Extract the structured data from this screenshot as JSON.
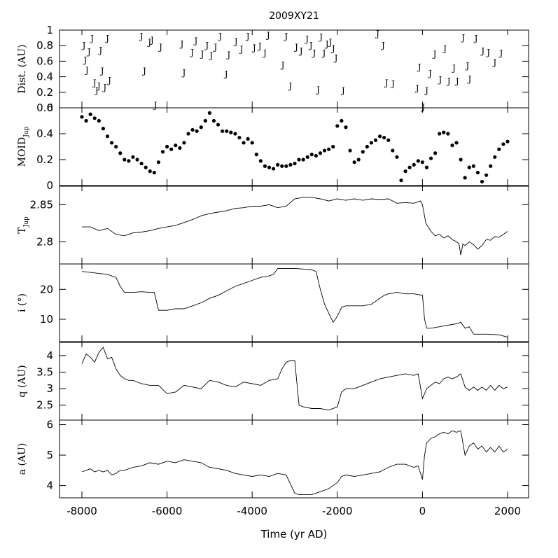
{
  "chart_data": {
    "type": "line",
    "title": "2009XY21",
    "xlabel": "Time (yr AD)",
    "xlim": [
      -8000,
      2000
    ],
    "xticks": [
      -8000,
      -6000,
      -4000,
      -2000,
      0,
      2000
    ],
    "panels": [
      {
        "id": "dist",
        "ylabel": "Dist. (AU)",
        "ylabel_sub": "",
        "ylim": [
          0,
          1
        ],
        "yticks": [
          0,
          0.2,
          0.4,
          0.6,
          0.8,
          1
        ],
        "ytick_labels": [
          "0",
          "0.2",
          "0.4",
          "0.6",
          "0.8",
          "1"
        ],
        "style": "markers",
        "marker": "J",
        "x": [
          -7950,
          -7920,
          -7880,
          -7830,
          -7760,
          -7700,
          -7650,
          -7600,
          -7560,
          -7520,
          -7460,
          -7400,
          -7350,
          -6600,
          -6530,
          -6410,
          -6350,
          -6270,
          -6150,
          -5650,
          -5600,
          -5410,
          -5320,
          -5170,
          -5060,
          -4960,
          -4860,
          -4750,
          -4610,
          -4550,
          -4380,
          -4250,
          -4100,
          -3950,
          -3820,
          -3700,
          -3620,
          -3280,
          -3200,
          -3100,
          -2960,
          -2850,
          -2710,
          -2620,
          -2540,
          -2450,
          -2380,
          -2310,
          -2240,
          -2160,
          -2090,
          -2030,
          -1860,
          -1050,
          -920,
          -840,
          -690,
          -120,
          -70,
          20,
          100,
          180,
          290,
          420,
          530,
          620,
          740,
          820,
          960,
          1060,
          1110,
          1260,
          1420,
          1550,
          1700,
          1850
        ],
        "y": [
          0.81,
          0.62,
          0.49,
          0.73,
          0.9,
          0.33,
          0.23,
          0.29,
          0.75,
          0.48,
          0.27,
          0.9,
          0.36,
          0.93,
          0.48,
          0.85,
          0.88,
          0.04,
          0.79,
          0.83,
          0.46,
          0.72,
          0.87,
          0.7,
          0.81,
          0.68,
          0.79,
          0.93,
          0.44,
          0.69,
          0.86,
          0.76,
          0.93,
          0.78,
          0.8,
          0.71,
          0.94,
          0.56,
          0.93,
          0.29,
          0.79,
          0.74,
          0.89,
          0.81,
          0.71,
          0.24,
          0.92,
          0.71,
          0.83,
          0.85,
          0.77,
          0.65,
          0.23,
          0.96,
          0.81,
          0.33,
          0.32,
          0.26,
          0.53,
          0.02,
          0.23,
          0.45,
          0.7,
          0.37,
          0.77,
          0.35,
          0.52,
          0.35,
          0.91,
          0.55,
          0.38,
          0.9,
          0.74,
          0.72,
          0.59,
          0.71
        ]
      },
      {
        "id": "moid",
        "ylabel": "MOID",
        "ylabel_sub": "Jup",
        "ylim": [
          0,
          0.6
        ],
        "yticks": [
          0,
          0.2,
          0.4,
          0.6
        ],
        "ytick_labels": [
          "0",
          "0.2",
          "0.4",
          "0.6"
        ],
        "style": "dots",
        "x": [
          -8000,
          -7900,
          -7800,
          -7700,
          -7600,
          -7500,
          -7400,
          -7300,
          -7200,
          -7100,
          -7000,
          -6900,
          -6800,
          -6700,
          -6600,
          -6500,
          -6400,
          -6300,
          -6200,
          -6100,
          -6000,
          -5900,
          -5800,
          -5700,
          -5600,
          -5500,
          -5400,
          -5300,
          -5200,
          -5100,
          -5000,
          -4900,
          -4800,
          -4700,
          -4600,
          -4500,
          -4400,
          -4300,
          -4200,
          -4100,
          -4000,
          -3900,
          -3800,
          -3700,
          -3600,
          -3500,
          -3400,
          -3300,
          -3200,
          -3100,
          -3000,
          -2900,
          -2800,
          -2700,
          -2600,
          -2500,
          -2400,
          -2300,
          -2200,
          -2100,
          -2000,
          -1900,
          -1800,
          -1700,
          -1600,
          -1500,
          -1400,
          -1300,
          -1200,
          -1100,
          -1000,
          -900,
          -800,
          -700,
          -600,
          -500,
          -400,
          -300,
          -200,
          -100,
          0,
          100,
          200,
          300,
          400,
          500,
          600,
          700,
          800,
          900,
          1000,
          1100,
          1200,
          1300,
          1400,
          1500,
          1600,
          1700,
          1800,
          1900,
          2000
        ],
        "y": [
          0.53,
          0.5,
          0.55,
          0.52,
          0.5,
          0.44,
          0.38,
          0.33,
          0.3,
          0.25,
          0.2,
          0.19,
          0.22,
          0.2,
          0.17,
          0.14,
          0.11,
          0.1,
          0.18,
          0.26,
          0.3,
          0.28,
          0.31,
          0.29,
          0.33,
          0.4,
          0.43,
          0.42,
          0.45,
          0.5,
          0.56,
          0.5,
          0.47,
          0.42,
          0.42,
          0.41,
          0.4,
          0.37,
          0.33,
          0.36,
          0.33,
          0.24,
          0.19,
          0.15,
          0.14,
          0.13,
          0.16,
          0.15,
          0.15,
          0.16,
          0.17,
          0.2,
          0.2,
          0.22,
          0.24,
          0.23,
          0.25,
          0.27,
          0.28,
          0.3,
          0.46,
          0.5,
          0.45,
          0.27,
          0.18,
          0.2,
          0.26,
          0.3,
          0.33,
          0.35,
          0.38,
          0.37,
          0.35,
          0.27,
          0.22,
          0.04,
          0.11,
          0.14,
          0.16,
          0.19,
          0.18,
          0.14,
          0.21,
          0.25,
          0.4,
          0.41,
          0.4,
          0.31,
          0.33,
          0.2,
          0.06,
          0.14,
          0.15,
          0.1,
          0.03,
          0.08,
          0.15,
          0.22,
          0.28,
          0.32,
          0.34
        ]
      },
      {
        "id": "tjup",
        "ylabel": "T",
        "ylabel_sub": "Jup",
        "ylim": [
          2.77,
          2.875
        ],
        "yticks": [
          2.8,
          2.85
        ],
        "ytick_labels": [
          "2.8",
          "2.85"
        ],
        "style": "line",
        "x": [
          -8000,
          -7800,
          -7600,
          -7400,
          -7200,
          -7000,
          -6800,
          -6600,
          -6400,
          -6200,
          -6000,
          -5800,
          -5600,
          -5400,
          -5200,
          -5000,
          -4800,
          -4600,
          -4400,
          -4200,
          -4000,
          -3800,
          -3600,
          -3400,
          -3200,
          -3000,
          -2800,
          -2600,
          -2400,
          -2200,
          -2000,
          -1800,
          -1600,
          -1400,
          -1200,
          -1000,
          -800,
          -600,
          -400,
          -200,
          -50,
          0,
          80,
          200,
          300,
          400,
          500,
          600,
          700,
          800,
          860,
          900,
          950,
          1000,
          1100,
          1200,
          1300,
          1400,
          1500,
          1600,
          1700,
          1800,
          1900,
          2000
        ],
        "y": [
          2.82,
          2.82,
          2.815,
          2.818,
          2.81,
          2.808,
          2.812,
          2.813,
          2.815,
          2.818,
          2.82,
          2.822,
          2.826,
          2.83,
          2.835,
          2.838,
          2.84,
          2.842,
          2.845,
          2.846,
          2.848,
          2.848,
          2.85,
          2.846,
          2.848,
          2.858,
          2.86,
          2.86,
          2.858,
          2.855,
          2.858,
          2.856,
          2.858,
          2.856,
          2.858,
          2.857,
          2.858,
          2.852,
          2.853,
          2.852,
          2.855,
          2.85,
          2.825,
          2.814,
          2.808,
          2.81,
          2.805,
          2.808,
          2.803,
          2.8,
          2.797,
          2.782,
          2.797,
          2.795,
          2.8,
          2.796,
          2.79,
          2.795,
          2.803,
          2.802,
          2.807,
          2.806,
          2.81,
          2.814
        ]
      },
      {
        "id": "inc",
        "ylabel": "i (°)",
        "ylabel_sub": "",
        "ylim": [
          2.5,
          28.5
        ],
        "yticks": [
          10,
          20
        ],
        "ytick_labels": [
          "10",
          "20"
        ],
        "style": "line",
        "x": [
          -8000,
          -7700,
          -7400,
          -7200,
          -7100,
          -7000,
          -6800,
          -6600,
          -6400,
          -6300,
          -6200,
          -6000,
          -5800,
          -5600,
          -5400,
          -5200,
          -5000,
          -4800,
          -4600,
          -4400,
          -4200,
          -4000,
          -3800,
          -3600,
          -3500,
          -3400,
          -3200,
          -3000,
          -2800,
          -2600,
          -2500,
          -2400,
          -2300,
          -2200,
          -2100,
          -2000,
          -1900,
          -1800,
          -1600,
          -1400,
          -1200,
          -1000,
          -900,
          -800,
          -600,
          -400,
          -200,
          0,
          50,
          100,
          200,
          400,
          600,
          800,
          900,
          1000,
          1100,
          1200,
          1500,
          1800,
          2000
        ],
        "y": [
          26,
          25.5,
          25,
          24,
          21,
          19,
          19,
          19.2,
          19,
          19,
          13,
          13,
          13.5,
          13.5,
          14.5,
          15.5,
          17,
          18,
          19.5,
          21,
          22,
          23,
          24,
          24.5,
          25,
          27,
          27,
          27,
          26.8,
          26.5,
          26,
          20,
          15,
          12,
          9,
          11,
          14,
          14.5,
          14.5,
          14.5,
          15,
          17,
          18,
          18.5,
          19,
          18.5,
          18.5,
          18,
          10,
          7,
          7,
          7.5,
          8,
          8.5,
          9,
          7,
          7.5,
          5,
          5,
          4.8,
          4
        ]
      },
      {
        "id": "q",
        "ylabel": "q (AU)",
        "ylabel_sub": "",
        "ylim": [
          2.05,
          4.4
        ],
        "yticks": [
          2.5,
          3,
          3.5,
          4
        ],
        "ytick_labels": [
          "2.5",
          "3",
          "3.5",
          "4"
        ],
        "style": "line",
        "x": [
          -8000,
          -7900,
          -7800,
          -7700,
          -7600,
          -7500,
          -7400,
          -7300,
          -7200,
          -7100,
          -7000,
          -6900,
          -6800,
          -6600,
          -6400,
          -6200,
          -6000,
          -5800,
          -5600,
          -5400,
          -5200,
          -5000,
          -4800,
          -4600,
          -4400,
          -4200,
          -4000,
          -3800,
          -3600,
          -3400,
          -3300,
          -3200,
          -3100,
          -3000,
          -2900,
          -2800,
          -2600,
          -2400,
          -2200,
          -2000,
          -1900,
          -1800,
          -1600,
          -1400,
          -1200,
          -1000,
          -800,
          -600,
          -400,
          -200,
          -100,
          0,
          100,
          200,
          300,
          400,
          500,
          600,
          700,
          800,
          900,
          1000,
          1100,
          1200,
          1300,
          1400,
          1500,
          1600,
          1700,
          1800,
          1900,
          2000
        ],
        "y": [
          3.75,
          4.05,
          3.95,
          3.8,
          4.1,
          4.25,
          3.9,
          3.95,
          3.6,
          3.4,
          3.3,
          3.25,
          3.25,
          3.15,
          3.1,
          3.1,
          2.85,
          2.9,
          3.1,
          3.05,
          3.0,
          3.25,
          3.2,
          3.1,
          3.05,
          3.2,
          3.15,
          3.1,
          3.25,
          3.3,
          3.6,
          3.8,
          3.85,
          3.85,
          2.5,
          2.45,
          2.4,
          2.4,
          2.35,
          2.45,
          2.9,
          3.0,
          3.0,
          3.1,
          3.2,
          3.3,
          3.35,
          3.4,
          3.45,
          3.4,
          3.45,
          2.7,
          3.0,
          3.1,
          3.2,
          3.15,
          3.3,
          3.35,
          3.3,
          3.35,
          3.45,
          3.05,
          2.95,
          3.05,
          2.95,
          3.05,
          2.95,
          3.1,
          2.95,
          3.1,
          3.0,
          3.05
        ]
      },
      {
        "id": "a",
        "ylabel": "a (AU)",
        "ylabel_sub": "",
        "ylim": [
          3.6,
          6.15
        ],
        "yticks": [
          4,
          5,
          6
        ],
        "ytick_labels": [
          "4",
          "5",
          "6"
        ],
        "style": "line",
        "x": [
          -8000,
          -7900,
          -7800,
          -7700,
          -7600,
          -7500,
          -7400,
          -7300,
          -7200,
          -7100,
          -7000,
          -6900,
          -6800,
          -6600,
          -6400,
          -6200,
          -6000,
          -5800,
          -5600,
          -5400,
          -5200,
          -5000,
          -4800,
          -4600,
          -4400,
          -4200,
          -4000,
          -3800,
          -3600,
          -3400,
          -3200,
          -3000,
          -2900,
          -2800,
          -2600,
          -2400,
          -2200,
          -2000,
          -1900,
          -1800,
          -1600,
          -1400,
          -1200,
          -1000,
          -800,
          -600,
          -400,
          -200,
          -100,
          0,
          50,
          100,
          200,
          300,
          400,
          500,
          600,
          700,
          800,
          900,
          1000,
          1100,
          1200,
          1300,
          1400,
          1500,
          1600,
          1700,
          1800,
          1900,
          2000
        ],
        "y": [
          4.45,
          4.5,
          4.55,
          4.45,
          4.5,
          4.45,
          4.5,
          4.35,
          4.4,
          4.5,
          4.5,
          4.55,
          4.6,
          4.65,
          4.75,
          4.7,
          4.8,
          4.75,
          4.85,
          4.8,
          4.75,
          4.6,
          4.55,
          4.5,
          4.4,
          4.35,
          4.3,
          4.35,
          4.3,
          4.4,
          4.35,
          3.75,
          3.7,
          3.7,
          3.7,
          3.8,
          3.9,
          4.1,
          4.3,
          4.35,
          4.3,
          4.35,
          4.4,
          4.45,
          4.6,
          4.7,
          4.7,
          4.6,
          4.65,
          4.2,
          5.0,
          5.4,
          5.55,
          5.6,
          5.7,
          5.75,
          5.7,
          5.8,
          5.75,
          5.8,
          5.0,
          5.3,
          5.4,
          5.2,
          5.3,
          5.1,
          5.25,
          5.1,
          5.3,
          5.1,
          5.2
        ]
      }
    ]
  }
}
